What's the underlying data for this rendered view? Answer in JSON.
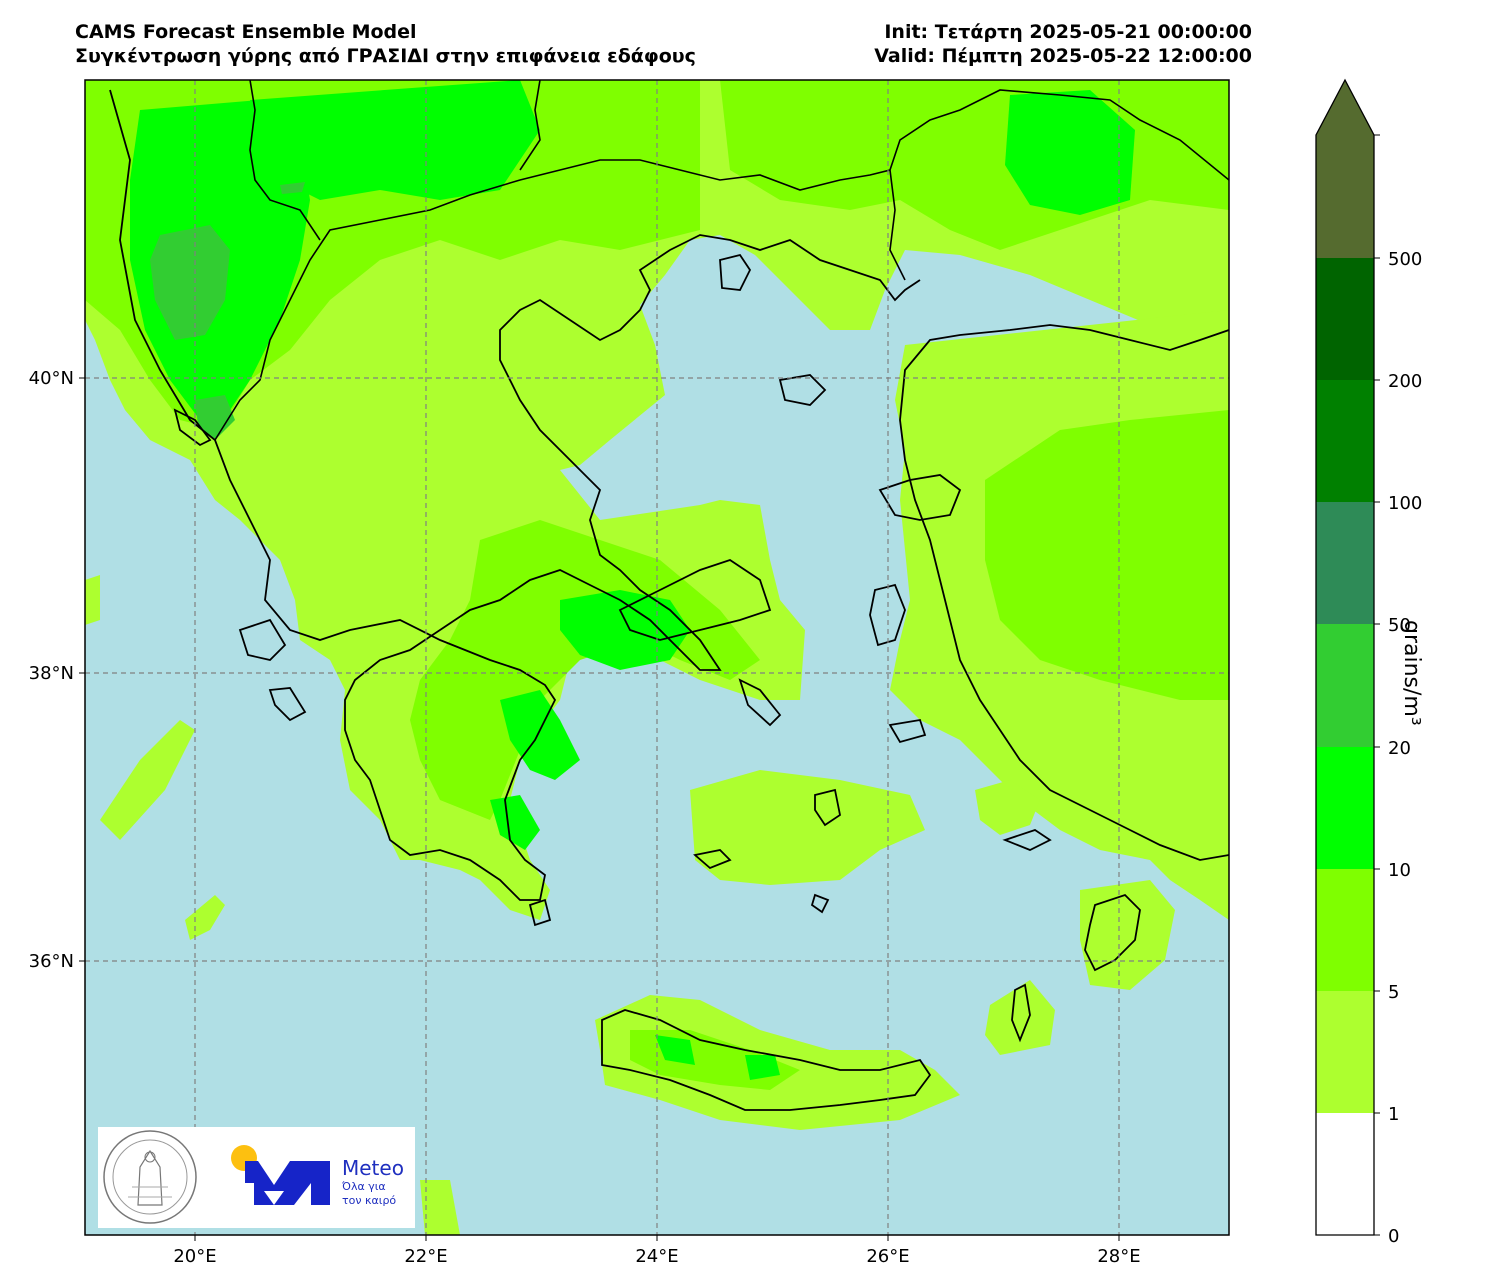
{
  "header": {
    "model": "CAMS Forecast Ensemble Model",
    "description": "Συγκέντρωση γύρης από ΓΡΑΣΙΔΙ στην επιφάνεια εδάφους",
    "init": "Init: Τετάρτη 2025-05-21 00:00:00",
    "valid": "Valid: Πέμπτη 2025-05-22 12:00:00"
  },
  "map": {
    "lon_range": [
      19.0,
      28.9
    ],
    "lat_range": [
      34.7,
      41.9
    ],
    "sea_color": "#b0dfe5",
    "lon_ticks": [
      {
        "value": 20,
        "label": "20°E"
      },
      {
        "value": 22,
        "label": "22°E"
      },
      {
        "value": 24,
        "label": "24°E"
      },
      {
        "value": 26,
        "label": "26°E"
      },
      {
        "value": 28,
        "label": "28°E"
      }
    ],
    "lat_ticks": [
      {
        "value": 36,
        "label": "36°N"
      },
      {
        "value": 38,
        "label": "38°N"
      },
      {
        "value": 40,
        "label": "40°N"
      }
    ],
    "gridlines": true
  },
  "colorbar": {
    "label": "grains/m³",
    "levels": [
      "0",
      "1",
      "5",
      "10",
      "20",
      "50",
      "100",
      "200",
      "500"
    ],
    "colors": [
      "#ffffff",
      "#adff2f",
      "#7fff00",
      "#7cfc00",
      "#00ff00",
      "#32cd32",
      "#2e8b57",
      "#008000",
      "#006400",
      "#556b2f"
    ],
    "extend": "max"
  },
  "logos": {
    "meteo_name": "Meteo",
    "tagline_1": "Όλα για",
    "tagline_2": "τον καιρό",
    "seal": "National Observatory of Athens seal"
  }
}
